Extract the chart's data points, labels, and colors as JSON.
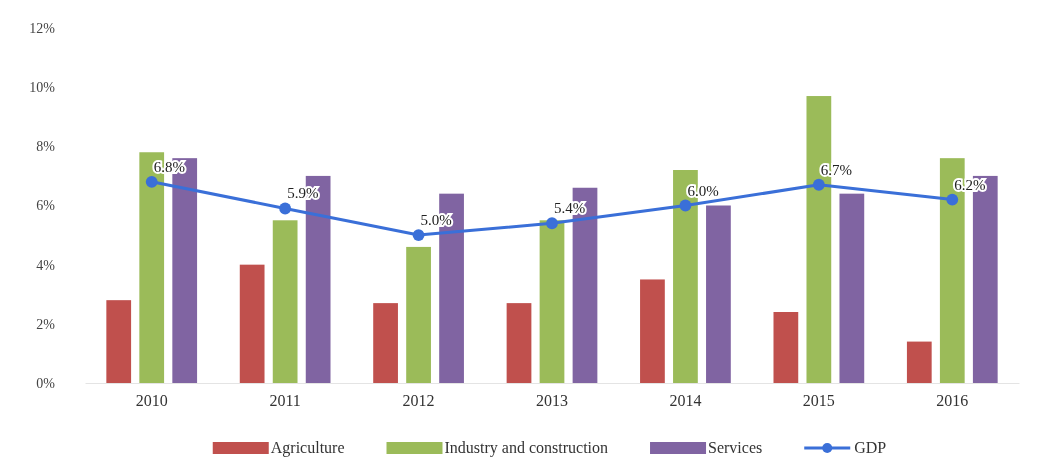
{
  "chart_data": {
    "type": "bar",
    "categories": [
      "2010",
      "2011",
      "2012",
      "2013",
      "2014",
      "2015",
      "2016"
    ],
    "series": [
      {
        "name": "Agriculture",
        "color": "#c0504d",
        "values": [
          2.8,
          4.0,
          2.7,
          2.7,
          3.5,
          2.4,
          1.4
        ]
      },
      {
        "name": "Industry and construction",
        "color": "#9bbb59",
        "values": [
          7.8,
          5.5,
          4.6,
          5.5,
          7.2,
          9.7,
          7.6
        ]
      },
      {
        "name": "Services",
        "color": "#8064a2",
        "values": [
          7.6,
          7.0,
          6.4,
          6.6,
          6.0,
          6.4,
          7.0
        ]
      },
      {
        "name": "GDP",
        "type": "line",
        "color": "#3a6fd8",
        "values": [
          6.8,
          5.9,
          5.0,
          5.4,
          6.0,
          6.7,
          6.2
        ],
        "value_labels": [
          "6.8%",
          "5.9%",
          "5.0%",
          "5.4%",
          "6.0%",
          "6.7%",
          "6.2%"
        ]
      }
    ],
    "ylim": [
      0,
      12
    ],
    "yticks": [
      {
        "value": 0,
        "label": "0%"
      },
      {
        "value": 2,
        "label": "2%"
      },
      {
        "value": 4,
        "label": "4%"
      },
      {
        "value": 6,
        "label": "6%"
      },
      {
        "value": 8,
        "label": "8%"
      },
      {
        "value": 10,
        "label": "10%"
      },
      {
        "value": 12,
        "label": "12%"
      }
    ],
    "grid": false,
    "legend": "bottom",
    "marker": "circle"
  }
}
